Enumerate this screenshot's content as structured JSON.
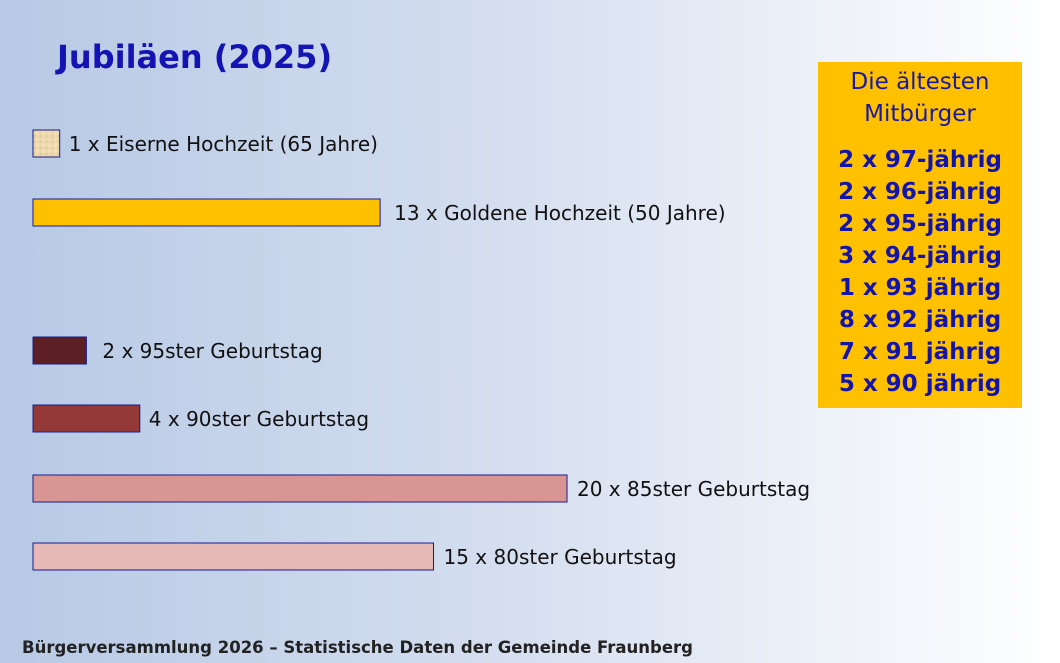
{
  "title": "Jubiläen (2025)",
  "chart_data": {
    "type": "bar",
    "orientation": "horizontal",
    "categories": [
      "1 x Eiserne Hochzeit (65 Jahre)",
      "13 x Goldene Hochzeit (50 Jahre)",
      "2 x 95ster Geburtstag",
      "4 x 90ster Geburtstag",
      "20 x 85ster Geburtstag",
      "15 x 80ster Geburtstag"
    ],
    "values": [
      1,
      13,
      2,
      4,
      20,
      15
    ],
    "colors": [
      "#e8d5a8",
      "#ffc000",
      "#5c1f26",
      "#953838",
      "#d99594",
      "#e6b8b7"
    ],
    "border_color": "#1a1a8c"
  },
  "side_box": {
    "title_line1": "Die ältesten",
    "title_line2": "Mitbürger",
    "items": [
      "2 x 97-jährig",
      "2 x 96-jährig",
      "2 x 95-jährig",
      "3 x 94-jährig",
      "1 x 93 jährig",
      "8 x 92 jährig",
      "7 x 91 jährig",
      "5 x 90 jährig"
    ]
  },
  "footer": "Bürgerversammlung 2026 – Statistische Daten der Gemeinde Fraunberg"
}
